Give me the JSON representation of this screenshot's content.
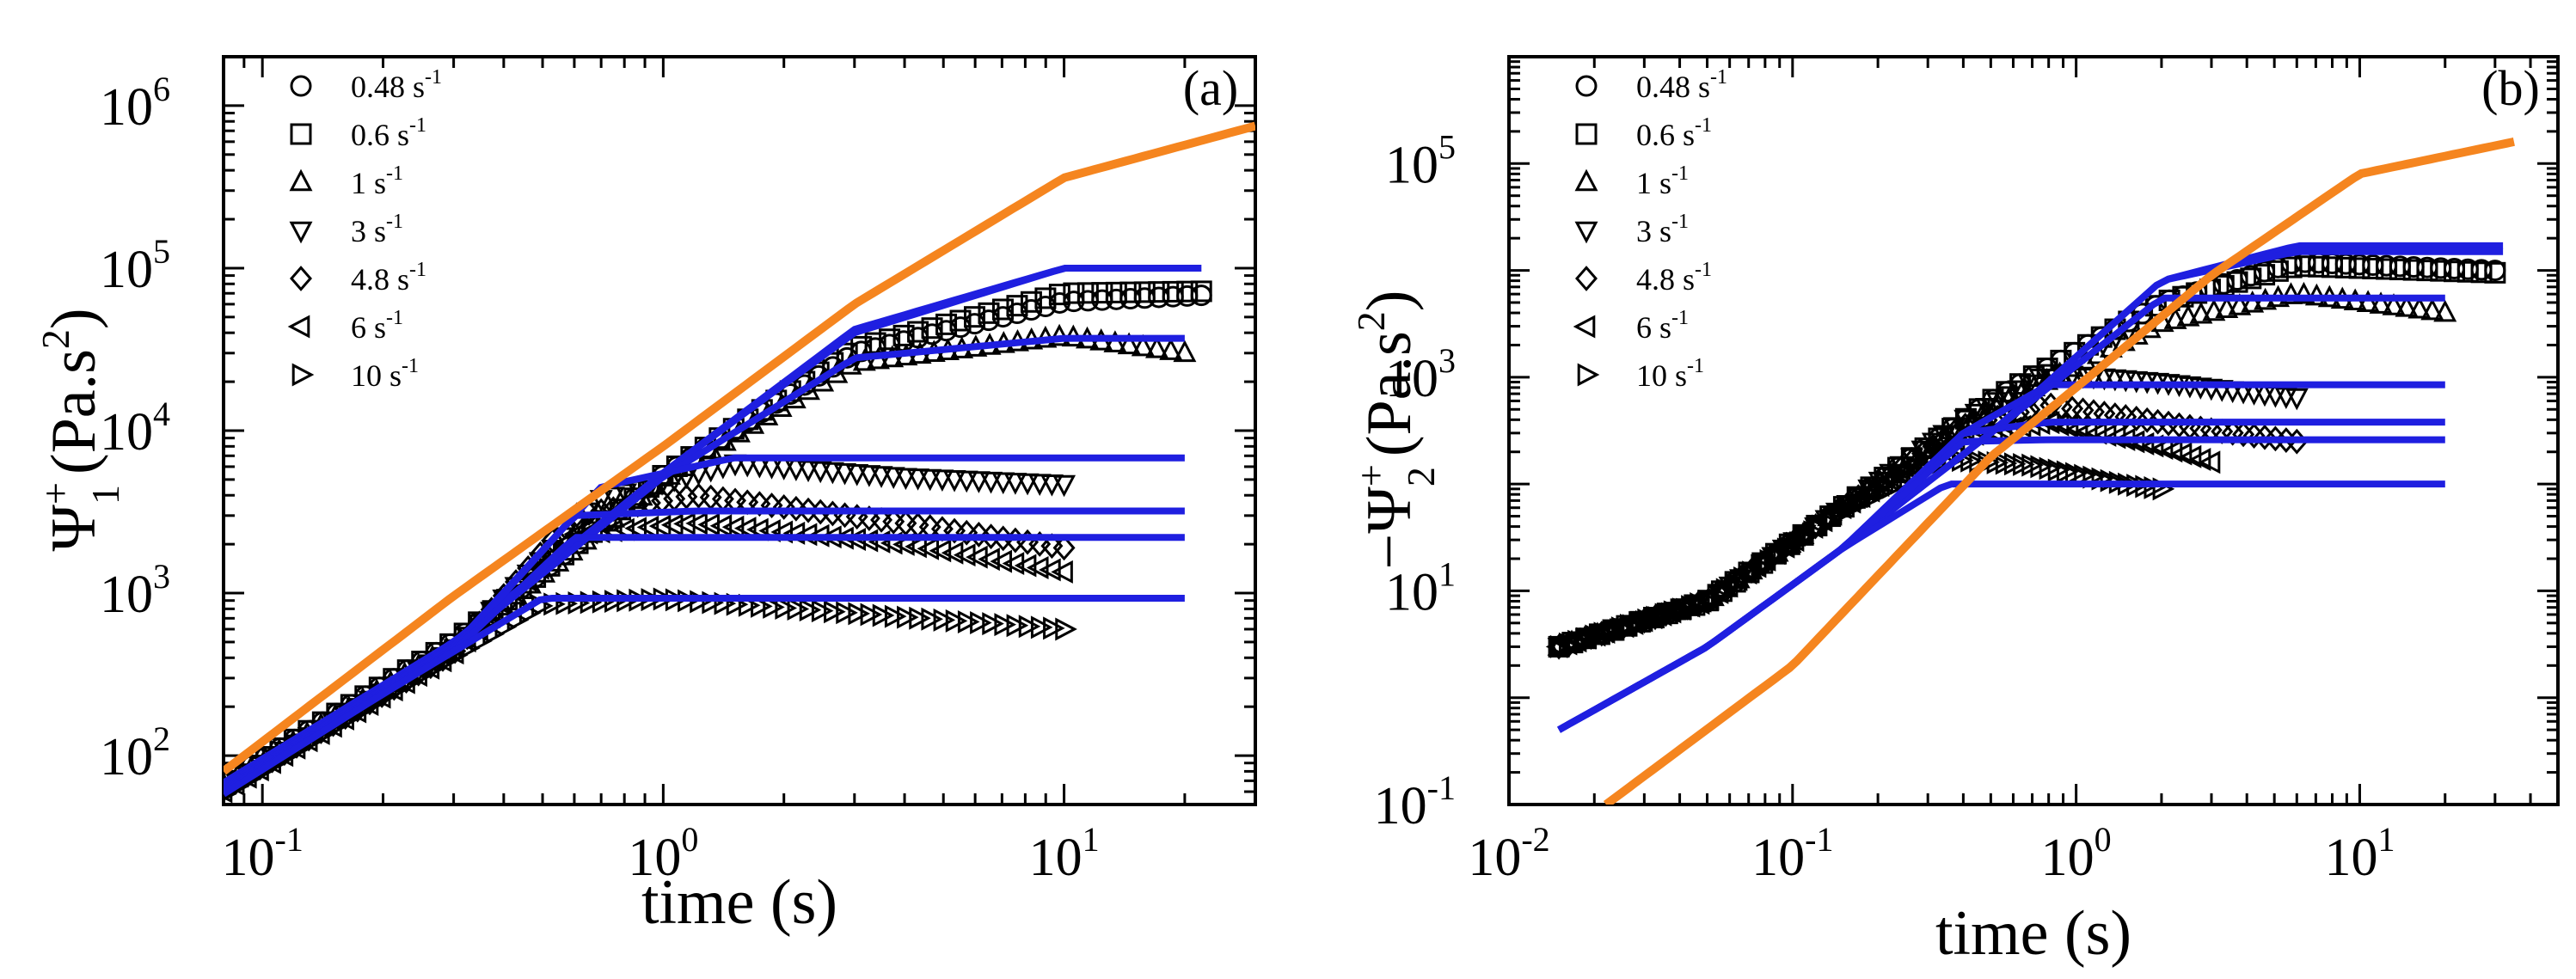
{
  "chart_data": [
    {
      "type": "scatter",
      "panel": "(a)",
      "scale": "log-log",
      "xlabel": "time (s)",
      "ylabel": "Ψ+1 (Pa.s2)",
      "ylabel_parts": {
        "symbol": "Ψ",
        "sup": "+",
        "sub": "1",
        "unit": "(Pa.s",
        "unit_sup": "2",
        "unit_close": ")"
      },
      "xlim": [
        0.08,
        30
      ],
      "ylim": [
        50,
        2000000
      ],
      "x_ticks": [
        {
          "value": 0.1,
          "base": "10",
          "exp": "-1"
        },
        {
          "value": 1,
          "base": "10",
          "exp": "0"
        },
        {
          "value": 10,
          "base": "10",
          "exp": "1"
        }
      ],
      "y_ticks": [
        {
          "value": 100,
          "base": "10",
          "exp": "2"
        },
        {
          "value": 1000,
          "base": "10",
          "exp": "3"
        },
        {
          "value": 10000,
          "base": "10",
          "exp": "4"
        },
        {
          "value": 100000,
          "base": "10",
          "exp": "5"
        },
        {
          "value": 1000000,
          "base": "10",
          "exp": "6"
        }
      ],
      "legend": [
        {
          "marker": "circle",
          "rate": "0.48 s",
          "exp": "-1"
        },
        {
          "marker": "square",
          "rate": "0.6 s",
          "exp": "-1"
        },
        {
          "marker": "triangle-up",
          "rate": "1 s",
          "exp": "-1"
        },
        {
          "marker": "triangle-down",
          "rate": "3 s",
          "exp": "-1"
        },
        {
          "marker": "diamond",
          "rate": "4.8 s",
          "exp": "-1"
        },
        {
          "marker": "triangle-left",
          "rate": "6 s",
          "exp": "-1"
        },
        {
          "marker": "triangle-right",
          "rate": "10 s",
          "exp": "-1"
        }
      ],
      "legend_position": "top-left",
      "envelope": {
        "name": "linear viscoelastic envelope",
        "color": "#f5851f",
        "x": [
          0.08,
          0.3,
          1,
          3,
          10,
          30
        ],
        "y": [
          80,
          960,
          8000,
          60000,
          360000,
          750000
        ]
      },
      "series": [
        {
          "name": "0.48 s-1",
          "marker": "circle",
          "x": [
            0.08,
            0.3,
            1,
            3,
            10,
            22
          ],
          "y": [
            68,
            500,
            5300,
            30000,
            62000,
            68000
          ],
          "model_y": [
            68,
            500,
            5500,
            40000,
            100000,
            100000
          ],
          "model_end": 22
        },
        {
          "name": "0.6 s-1",
          "marker": "square",
          "x": [
            0.08,
            0.3,
            1,
            3,
            10,
            22
          ],
          "y": [
            68,
            500,
            5300,
            32000,
            70000,
            72000
          ],
          "model_y": [
            68,
            500,
            5500,
            42000,
            100000,
            100000
          ],
          "model_end": 22
        },
        {
          "name": "1 s-1",
          "marker": "triangle-up",
          "x": [
            0.08,
            0.3,
            1,
            3,
            10,
            20
          ],
          "y": [
            66,
            480,
            5000,
            26000,
            38000,
            30000
          ],
          "model_y": [
            66,
            480,
            5200,
            28000,
            37000,
            37000
          ],
          "model_end": 20
        },
        {
          "name": "3 s-1",
          "marker": "triangle-down",
          "x": [
            0.08,
            0.3,
            0.7,
            1.5,
            4,
            10
          ],
          "y": [
            64,
            450,
            3800,
            6300,
            5200,
            4700
          ],
          "model_y": [
            64,
            470,
            4500,
            6800,
            6800,
            6800
          ],
          "model_end": 20
        },
        {
          "name": "4.8 s-1",
          "marker": "diamond",
          "x": [
            0.08,
            0.3,
            0.6,
            1.2,
            4,
            10
          ],
          "y": [
            62,
            430,
            3000,
            4000,
            2700,
            1900
          ],
          "model_y": [
            62,
            450,
            3000,
            3200,
            3200,
            3200
          ],
          "model_end": 20
        },
        {
          "name": "6 s-1",
          "marker": "triangle-left",
          "x": [
            0.08,
            0.3,
            0.6,
            1.2,
            4,
            10
          ],
          "y": [
            60,
            420,
            2300,
            2700,
            2000,
            1350
          ],
          "model_y": [
            60,
            440,
            2200,
            2200,
            2200,
            2200
          ],
          "model_end": 20
        },
        {
          "name": "10 s-1",
          "marker": "triangle-right",
          "x": [
            0.08,
            0.2,
            0.5,
            1,
            3,
            10
          ],
          "y": [
            58,
            230,
            850,
            920,
            750,
            600
          ],
          "model_y": [
            58,
            240,
            930,
            930,
            930,
            930
          ],
          "model_end": 20
        }
      ],
      "model_color": "#1f1fe0",
      "data_color": "#000000",
      "annotation": "(a)"
    },
    {
      "type": "scatter",
      "panel": "(b)",
      "scale": "log-log",
      "xlabel": "time (s)",
      "ylabel": "−Ψ+2 (Pa.s2)",
      "ylabel_parts": {
        "symbol": "−Ψ",
        "sup": "+",
        "sub": "2",
        "unit": "(Pa.s",
        "unit_sup": "2",
        "unit_close": ")"
      },
      "xlim": [
        0.01,
        50
      ],
      "ylim": [
        0.1,
        1000000
      ],
      "x_ticks": [
        {
          "value": 0.01,
          "base": "10",
          "exp": "-2"
        },
        {
          "value": 0.1,
          "base": "10",
          "exp": "-1"
        },
        {
          "value": 1,
          "base": "10",
          "exp": "0"
        },
        {
          "value": 10,
          "base": "10",
          "exp": "1"
        }
      ],
      "y_ticks": [
        {
          "value": 0.1,
          "label": "10",
          "exp": "-1"
        },
        {
          "value": 10,
          "label": "10",
          "exp": "1"
        },
        {
          "value": 1000,
          "label": "10",
          "exp": "3"
        },
        {
          "value": 100000,
          "label": "10",
          "exp": "5"
        }
      ],
      "legend": [
        {
          "marker": "circle",
          "rate": "0.48 s",
          "exp": "-1"
        },
        {
          "marker": "square",
          "rate": "0.6 s",
          "exp": "-1"
        },
        {
          "marker": "triangle-up",
          "rate": "1 s",
          "exp": "-1"
        },
        {
          "marker": "triangle-down",
          "rate": "3 s",
          "exp": "-1"
        },
        {
          "marker": "diamond",
          "rate": "4.8 s",
          "exp": "-1"
        },
        {
          "marker": "triangle-left",
          "rate": "6 s",
          "exp": "-1"
        },
        {
          "marker": "triangle-right",
          "rate": "10 s",
          "exp": "-1"
        }
      ],
      "legend_position": "top-left",
      "envelope": {
        "name": "linear viscoelastic envelope",
        "color": "#f5851f",
        "x": [
          0.022,
          0.1,
          0.5,
          1,
          3,
          10,
          35
        ],
        "y": [
          0.1,
          2,
          180,
          800,
          9000,
          80000,
          160000
        ]
      },
      "series": [
        {
          "name": "0.48 s-1",
          "marker": "circle",
          "x": [
            0.015,
            0.05,
            0.15,
            0.5,
            2,
            6,
            30
          ],
          "y": [
            3,
            8,
            60,
            600,
            5000,
            12000,
            10000
          ],
          "model_y": [
            0.5,
            3,
            25,
            300,
            8000,
            17000,
            17000
          ],
          "model_end": 32
        },
        {
          "name": "0.6 s-1",
          "marker": "square",
          "x": [
            0.015,
            0.05,
            0.15,
            0.5,
            2,
            6,
            30
          ],
          "y": [
            3,
            8,
            60,
            600,
            5000,
            11000,
            9500
          ],
          "model_y": [
            0.5,
            3,
            25,
            300,
            8000,
            15000,
            15000
          ],
          "model_end": 32
        },
        {
          "name": "1 s-1",
          "marker": "triangle-up",
          "x": [
            0.015,
            0.05,
            0.15,
            0.5,
            2,
            6,
            20
          ],
          "y": [
            3,
            8,
            60,
            500,
            3200,
            6000,
            4000
          ],
          "model_y": [
            0.5,
            3,
            25,
            300,
            5500,
            5500,
            5500
          ],
          "model_end": 20
        },
        {
          "name": "3 s-1",
          "marker": "triangle-down",
          "x": [
            0.015,
            0.05,
            0.15,
            0.4,
            0.8,
            2,
            6
          ],
          "y": [
            3,
            8,
            60,
            400,
            1100,
            900,
            650
          ],
          "model_y": [
            0.5,
            3,
            25,
            300,
            850,
            850,
            850
          ],
          "model_end": 20
        },
        {
          "name": "4.8 s-1",
          "marker": "diamond",
          "x": [
            0.015,
            0.05,
            0.15,
            0.4,
            0.8,
            3,
            6
          ],
          "y": [
            3,
            8,
            60,
            350,
            550,
            320,
            250
          ],
          "model_y": [
            0.5,
            3,
            25,
            300,
            380,
            380,
            380
          ],
          "model_end": 20
        },
        {
          "name": "6 s-1",
          "marker": "triangle-left",
          "x": [
            0.015,
            0.05,
            0.15,
            0.4,
            0.8,
            2,
            3
          ],
          "y": [
            3,
            8,
            60,
            280,
            380,
            220,
            160
          ],
          "model_y": [
            0.5,
            3,
            25,
            250,
            260,
            260,
            260
          ],
          "model_end": 20
        },
        {
          "name": "10 s-1",
          "marker": "triangle-right",
          "x": [
            0.015,
            0.05,
            0.15,
            0.35,
            0.7,
            1.5,
            2
          ],
          "y": [
            3,
            8,
            55,
            170,
            150,
            100,
            90
          ],
          "model_y": [
            0.5,
            3,
            25,
            100,
            100,
            100,
            100
          ],
          "model_end": 20
        }
      ],
      "model_color": "#1f1fe0",
      "data_color": "#000000",
      "annotation": "(b)"
    }
  ]
}
